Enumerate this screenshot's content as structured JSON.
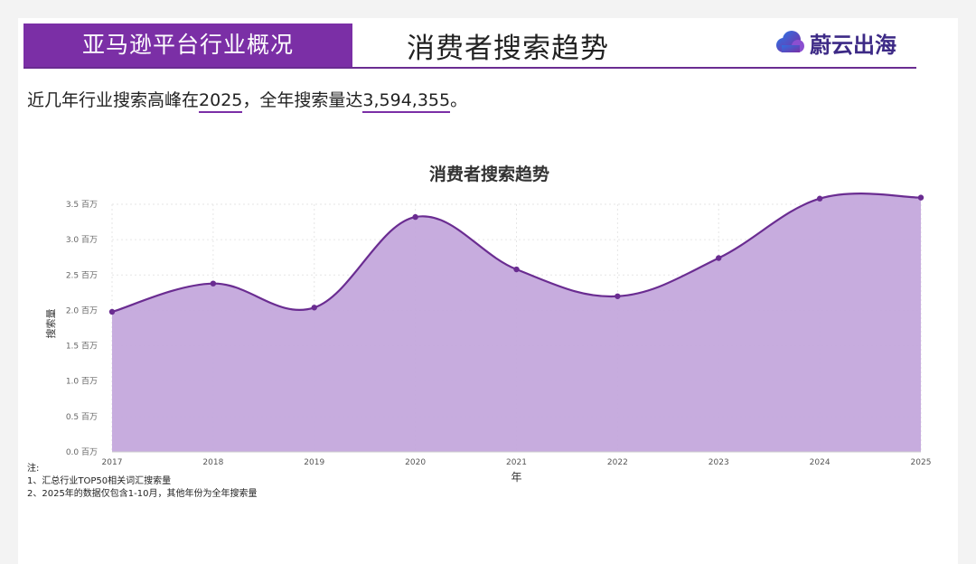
{
  "header": {
    "banner": "亚马逊平台行业概况",
    "title": "消费者搜索趋势",
    "brand": "蔚云出海",
    "brand_color": "#3d2a86"
  },
  "summary": {
    "prefix": "近几年行业搜索高峰在",
    "peak_year": "2025",
    "middle": "，全年搜索量达",
    "peak_value": "3,594,355",
    "suffix": "。"
  },
  "chart_data": {
    "type": "area",
    "title": "消费者搜索趋势",
    "xlabel": "年",
    "ylabel": "搜索量",
    "x": [
      "2017",
      "2018",
      "2019",
      "2020",
      "2021",
      "2022",
      "2023",
      "2024",
      "2025"
    ],
    "values": [
      1980000,
      2380000,
      2040000,
      3320000,
      2580000,
      2200000,
      2740000,
      3580000,
      3594355
    ],
    "ylim": [
      0,
      3500000
    ],
    "yticks": [
      0,
      500000,
      1000000,
      1500000,
      2000000,
      2500000,
      3000000,
      3500000
    ],
    "ytick_labels": [
      "0.0 百万",
      "0.5 百万",
      "1.0 百万",
      "1.5 百万",
      "2.0 百万",
      "2.5 百万",
      "3.0 百万",
      "3.5 百万"
    ],
    "grid": true,
    "colors": {
      "line": "#6a2c91",
      "fill": "#c4a8dc",
      "point": "#6a2c91"
    }
  },
  "notes": {
    "heading": "注:",
    "lines": [
      "1、汇总行业TOP50相关词汇搜索量",
      "2、2025年的数据仅包含1-10月，其他年份为全年搜索量"
    ]
  },
  "colors": {
    "accent": "#7b2fa6",
    "rule": "#6a2c91"
  }
}
